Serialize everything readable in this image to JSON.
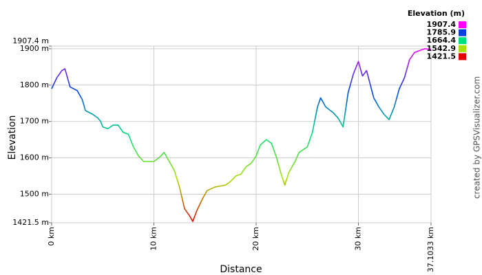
{
  "chart_data": {
    "type": "line",
    "y_axis_label": "Elevation",
    "x_axis_label": "Distance",
    "credit": "created by GPSVisualizer.com",
    "legend_title": "Elevation (m)",
    "legend": [
      {
        "value": 1907.4,
        "color": "#ff00ff"
      },
      {
        "value": 1785.9,
        "color": "#0040e0"
      },
      {
        "value": 1664.4,
        "color": "#00e080"
      },
      {
        "value": 1542.9,
        "color": "#a8e000"
      },
      {
        "value": 1421.5,
        "color": "#e00000"
      }
    ],
    "grid": true,
    "xlim": [
      0,
      37.1033
    ],
    "ylim": [
      1421.5,
      1907.4
    ],
    "xticks": [
      {
        "value": 0,
        "label": "0 km"
      },
      {
        "value": 10,
        "label": "10 km"
      },
      {
        "value": 20,
        "label": "20 km"
      },
      {
        "value": 30,
        "label": "30 km"
      },
      {
        "value": 37.1033,
        "label": "37.1033 km"
      }
    ],
    "yticks": [
      {
        "value": 1421.5,
        "label": "1421.5 m"
      },
      {
        "value": 1500,
        "label": "1500 m"
      },
      {
        "value": 1600,
        "label": "1600 m"
      },
      {
        "value": 1700,
        "label": "1700 m"
      },
      {
        "value": 1800,
        "label": "1800 m"
      },
      {
        "value": 1900,
        "label": "1900 m"
      },
      {
        "value": 1907.4,
        "label": "1907.4 m"
      }
    ],
    "x": [
      0,
      0.5,
      1.0,
      1.3,
      1.5,
      1.8,
      2.5,
      3.0,
      3.3,
      4.0,
      4.5,
      4.8,
      5.0,
      5.5,
      6.0,
      6.5,
      7.0,
      7.5,
      8.0,
      8.5,
      9.0,
      9.5,
      10.0,
      10.5,
      11.0,
      11.5,
      12.0,
      12.5,
      13.0,
      13.5,
      13.8,
      14.2,
      14.8,
      15.2,
      16.0,
      17.0,
      17.5,
      18.0,
      18.5,
      19.0,
      19.5,
      20.0,
      20.4,
      21.0,
      21.5,
      22.0,
      22.5,
      22.8,
      23.2,
      23.8,
      24.2,
      25.0,
      25.5,
      26.0,
      26.3,
      26.8,
      27.5,
      28.0,
      28.5,
      29.0,
      29.5,
      30.0,
      30.4,
      30.8,
      31.5,
      32.0,
      32.5,
      33.0,
      33.5,
      34.0,
      34.5,
      35.0,
      35.5,
      36.0,
      36.5,
      37.1033
    ],
    "values": [
      1790,
      1820,
      1840,
      1845,
      1825,
      1795,
      1785,
      1760,
      1730,
      1720,
      1710,
      1700,
      1685,
      1680,
      1690,
      1690,
      1670,
      1665,
      1630,
      1605,
      1590,
      1590,
      1590,
      1600,
      1615,
      1590,
      1565,
      1520,
      1460,
      1440,
      1425,
      1455,
      1490,
      1510,
      1520,
      1525,
      1535,
      1550,
      1555,
      1575,
      1585,
      1605,
      1635,
      1650,
      1640,
      1600,
      1550,
      1525,
      1560,
      1590,
      1615,
      1630,
      1670,
      1740,
      1765,
      1740,
      1725,
      1710,
      1685,
      1780,
      1830,
      1865,
      1825,
      1840,
      1765,
      1740,
      1720,
      1705,
      1740,
      1790,
      1820,
      1870,
      1890,
      1895,
      1900,
      1898
    ]
  }
}
